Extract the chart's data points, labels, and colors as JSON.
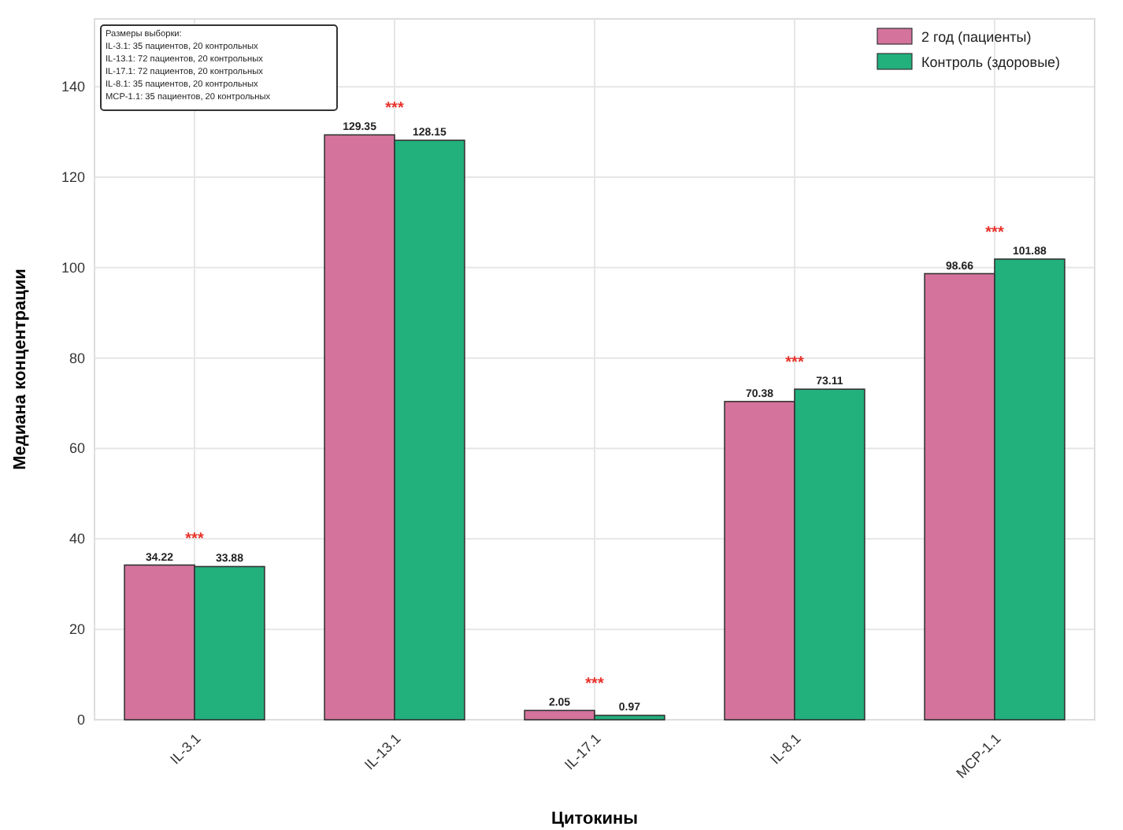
{
  "chart_data": {
    "type": "bar",
    "xlabel": "Цитокины",
    "ylabel": "Медиана концентрации",
    "categories": [
      "IL-3.1",
      "IL-13.1",
      "IL-17.1",
      "IL-8.1",
      "MCP-1.1"
    ],
    "series": [
      {
        "name": "2 год (пациенты)",
        "color": "#d4739c",
        "values": [
          34.22,
          129.35,
          2.05,
          70.38,
          98.66
        ]
      },
      {
        "name": "Контроль (здоровые)",
        "color": "#22b07d",
        "values": [
          33.88,
          128.15,
          0.97,
          73.11,
          101.88
        ]
      }
    ],
    "data_labels": true,
    "ylim": [
      0,
      155
    ],
    "yticks": [
      0,
      20,
      40,
      60,
      80,
      100,
      120,
      140
    ],
    "grid": true,
    "legend": "top right",
    "annotations": [
      "***",
      "***",
      "***",
      "***",
      "***",
      "Размеры выборки:\nIL-3.1: 35 пациентов, 20 контрольных\nIL-13.1: 72 пациентов, 20 контрольных\nIL-17.1: 72 пациентов, 20 контрольных\nIL-8.1: 35 пациентов, 20 контрольных\nMCP-1.1: 35 пациентов, 20 контрольных"
    ]
  }
}
